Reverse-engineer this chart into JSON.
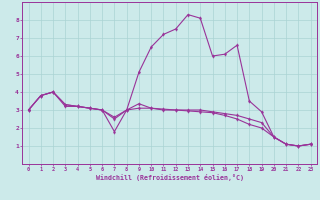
{
  "title": "",
  "xlabel": "Windchill (Refroidissement éolien,°C)",
  "ylabel": "",
  "bg_color": "#cceaea",
  "grid_color": "#aad4d4",
  "line_color": "#993399",
  "xlim": [
    -0.5,
    23.5
  ],
  "ylim": [
    0,
    9
  ],
  "xticks": [
    0,
    1,
    2,
    3,
    4,
    5,
    6,
    7,
    8,
    9,
    10,
    11,
    12,
    13,
    14,
    15,
    16,
    17,
    18,
    19,
    20,
    21,
    22,
    23
  ],
  "yticks": [
    1,
    2,
    3,
    4,
    5,
    6,
    7,
    8
  ],
  "series1": [
    [
      0,
      3.0
    ],
    [
      1,
      3.8
    ],
    [
      2,
      4.0
    ],
    [
      3,
      3.3
    ],
    [
      4,
      3.2
    ],
    [
      5,
      3.1
    ],
    [
      6,
      3.0
    ],
    [
      7,
      1.8
    ],
    [
      8,
      3.0
    ],
    [
      9,
      3.1
    ],
    [
      10,
      3.1
    ],
    [
      11,
      3.0
    ],
    [
      12,
      3.0
    ],
    [
      13,
      3.0
    ],
    [
      14,
      3.0
    ],
    [
      15,
      2.9
    ],
    [
      16,
      2.8
    ],
    [
      17,
      2.7
    ],
    [
      18,
      2.5
    ],
    [
      19,
      2.3
    ],
    [
      20,
      1.5
    ],
    [
      21,
      1.1
    ],
    [
      22,
      1.0
    ],
    [
      23,
      1.1
    ]
  ],
  "series2": [
    [
      0,
      3.0
    ],
    [
      1,
      3.8
    ],
    [
      2,
      4.0
    ],
    [
      3,
      3.3
    ],
    [
      4,
      3.2
    ],
    [
      5,
      3.1
    ],
    [
      6,
      3.0
    ],
    [
      7,
      2.6
    ],
    [
      8,
      3.0
    ],
    [
      9,
      3.35
    ],
    [
      10,
      3.1
    ],
    [
      11,
      3.05
    ],
    [
      12,
      3.0
    ],
    [
      13,
      2.95
    ],
    [
      14,
      2.9
    ],
    [
      15,
      2.85
    ],
    [
      16,
      2.7
    ],
    [
      17,
      2.5
    ],
    [
      18,
      2.2
    ],
    [
      19,
      2.0
    ],
    [
      20,
      1.5
    ],
    [
      21,
      1.1
    ],
    [
      22,
      1.0
    ],
    [
      23,
      1.1
    ]
  ],
  "series3": [
    [
      0,
      3.0
    ],
    [
      1,
      3.8
    ],
    [
      2,
      4.0
    ],
    [
      3,
      3.2
    ],
    [
      4,
      3.2
    ],
    [
      5,
      3.1
    ],
    [
      6,
      3.0
    ],
    [
      7,
      2.5
    ],
    [
      8,
      3.0
    ],
    [
      9,
      5.1
    ],
    [
      10,
      6.5
    ],
    [
      11,
      7.2
    ],
    [
      12,
      7.5
    ],
    [
      13,
      8.3
    ],
    [
      14,
      8.1
    ],
    [
      15,
      6.0
    ],
    [
      16,
      6.1
    ],
    [
      17,
      6.6
    ],
    [
      18,
      3.5
    ],
    [
      19,
      2.9
    ],
    [
      20,
      1.5
    ],
    [
      21,
      1.1
    ],
    [
      22,
      1.0
    ],
    [
      23,
      1.1
    ]
  ]
}
